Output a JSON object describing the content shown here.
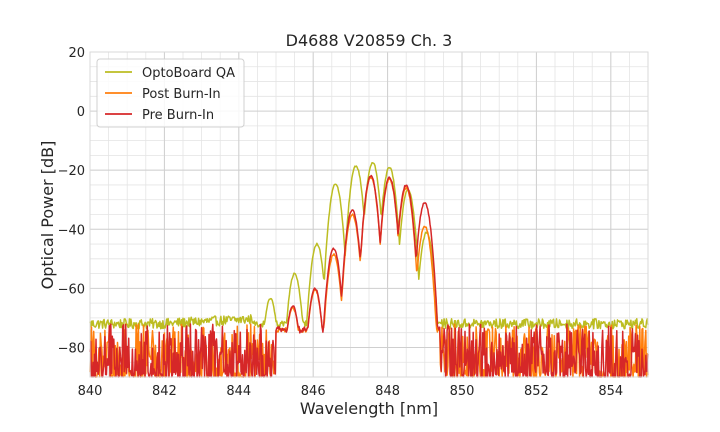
{
  "chart_data": {
    "type": "line",
    "title": "D4688 V20859 Ch. 3",
    "xlabel": "Wavelength [nm]",
    "ylabel": "Optical Power [dB]",
    "xlim": [
      840,
      855
    ],
    "ylim": [
      -90,
      20
    ],
    "x_ticks": [
      840,
      842,
      844,
      846,
      848,
      850,
      852,
      854
    ],
    "y_ticks": [
      20,
      0,
      -20,
      -40,
      -60,
      -80
    ],
    "x_tick_labels": [
      "840",
      "842",
      "844",
      "846",
      "848",
      "850",
      "852",
      "854"
    ],
    "y_tick_labels": [
      "20",
      "0",
      "−20",
      "−40",
      "−60",
      "−80"
    ],
    "grid": true,
    "minor_grid": true,
    "legend_position": "top-left",
    "series": [
      {
        "name": "OptoBoard QA",
        "color": "#bcbd22",
        "noise_floor_range": [
          -74,
          -70
        ],
        "peaks": [
          {
            "x": 844.85,
            "y": -63.5
          },
          {
            "x": 845.5,
            "y": -55.0
          },
          {
            "x": 846.1,
            "y": -45.0
          },
          {
            "x": 846.6,
            "y": -24.5
          },
          {
            "x": 847.15,
            "y": -18.5
          },
          {
            "x": 847.6,
            "y": -17.5
          },
          {
            "x": 848.05,
            "y": -19.0
          },
          {
            "x": 848.55,
            "y": -26.5
          },
          {
            "x": 849.05,
            "y": -41.0
          }
        ]
      },
      {
        "name": "Post Burn-In",
        "color": "#ff7f0e",
        "noise_floor_range": [
          -90,
          -72
        ],
        "peaks": [
          {
            "x": 845.45,
            "y": -66.5
          },
          {
            "x": 846.05,
            "y": -60.5
          },
          {
            "x": 846.55,
            "y": -48.5
          },
          {
            "x": 847.05,
            "y": -35.0
          },
          {
            "x": 847.55,
            "y": -22.5
          },
          {
            "x": 848.05,
            "y": -23.0
          },
          {
            "x": 848.5,
            "y": -26.0
          },
          {
            "x": 849.0,
            "y": -39.0
          }
        ]
      },
      {
        "name": "Pre Burn-In",
        "color": "#d62728",
        "noise_floor_range": [
          -90,
          -72
        ],
        "peaks": [
          {
            "x": 845.45,
            "y": -66.0
          },
          {
            "x": 846.05,
            "y": -60.0
          },
          {
            "x": 846.55,
            "y": -46.5
          },
          {
            "x": 847.05,
            "y": -33.5
          },
          {
            "x": 847.55,
            "y": -22.0
          },
          {
            "x": 848.05,
            "y": -22.5
          },
          {
            "x": 848.5,
            "y": -25.0
          },
          {
            "x": 849.0,
            "y": -31.0
          }
        ]
      }
    ]
  }
}
